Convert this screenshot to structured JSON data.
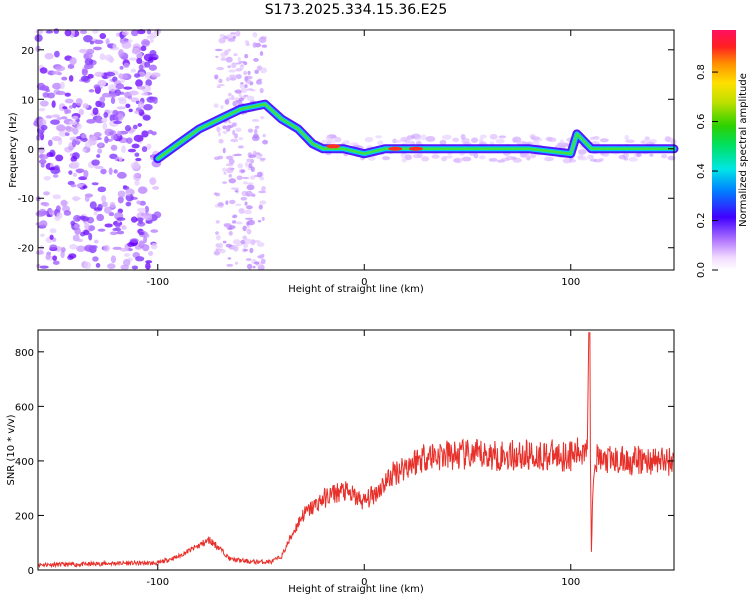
{
  "title": "S173.2025.334.15.36.E25",
  "chart_data": [
    {
      "type": "heatmap",
      "xlabel": "Height of straight line (km)",
      "ylabel": "Frequency (Hz)",
      "xlim": [
        -158,
        150
      ],
      "ylim": [
        -24.5,
        24
      ],
      "xticks": [
        -100,
        0,
        100
      ],
      "yticks": [
        -20,
        -10,
        0,
        10,
        20
      ],
      "colorbar": {
        "label": "Normalized spectral amplitude",
        "range": [
          0,
          0.97
        ],
        "ticks": [
          0.0,
          0.2,
          0.4,
          0.6,
          0.8
        ]
      },
      "ridge": {
        "description_points_x": [
          -100,
          -90,
          -80,
          -70,
          -60,
          -48,
          -40,
          -32,
          -25,
          -20,
          -10,
          0,
          10,
          20,
          50,
          80,
          100,
          103,
          110,
          150
        ],
        "description_points_y": [
          -2,
          1,
          4,
          6,
          8,
          9,
          6,
          4,
          1,
          0,
          0,
          -1,
          0,
          0,
          0,
          0,
          -1,
          3,
          0,
          0
        ]
      }
    },
    {
      "type": "line",
      "xlabel": "Height of straight line (km)",
      "ylabel": "SNR (10 * v/v)",
      "xlim": [
        -158,
        150
      ],
      "ylim": [
        0,
        880
      ],
      "xticks": [
        -100,
        0,
        100
      ],
      "yticks": [
        0,
        200,
        400,
        600,
        800
      ],
      "series": [
        {
          "name": "SNR",
          "color": "#e8302a",
          "x": [
            -158,
            -140,
            -120,
            -100,
            -90,
            -80,
            -75,
            -70,
            -65,
            -55,
            -45,
            -40,
            -35,
            -30,
            -25,
            -20,
            -15,
            -10,
            -5,
            0,
            5,
            10,
            15,
            20,
            25,
            30,
            40,
            50,
            60,
            70,
            80,
            90,
            100,
            105,
            108,
            109,
            110,
            111,
            112,
            115,
            120,
            130,
            140,
            150
          ],
          "y": [
            20,
            20,
            25,
            25,
            50,
            90,
            110,
            80,
            40,
            30,
            30,
            50,
            130,
            200,
            230,
            260,
            280,
            290,
            270,
            250,
            280,
            320,
            360,
            380,
            400,
            420,
            420,
            420,
            420,
            420,
            420,
            420,
            420,
            430,
            480,
            870,
            70,
            380,
            410,
            400,
            400,
            400,
            400,
            400
          ]
        }
      ]
    }
  ],
  "colors": {
    "snr_line": "#e8302a",
    "frame": "#000000"
  }
}
